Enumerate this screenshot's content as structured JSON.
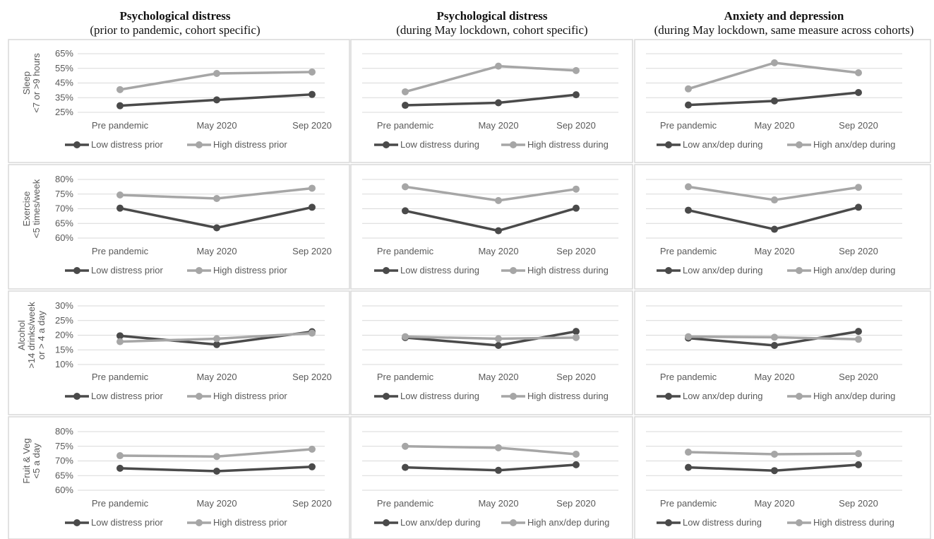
{
  "colors": {
    "low": "#4a4a4a",
    "high": "#a6a6a6",
    "grid": "#d9d9d9",
    "border": "#d9d9d9",
    "text": "#595959"
  },
  "columns": [
    {
      "title": "Psychological distress",
      "subtitle": "(prior to pandemic, cohort specific)"
    },
    {
      "title": "Psychological distress",
      "subtitle": "(during May lockdown, cohort specific)"
    },
    {
      "title": "Anxiety and depression",
      "subtitle": "(during May lockdown, same measure across cohorts)"
    }
  ],
  "rows": [
    {
      "ylabel": [
        "Sleep",
        "<7 or >9 hours"
      ],
      "ticks": [
        "65%",
        "55%",
        "45%",
        "35%",
        "25%"
      ],
      "ylim": [
        25,
        65
      ],
      "step": 10,
      "show_ticks": [
        true,
        false,
        false
      ]
    },
    {
      "ylabel": [
        "Exercise",
        "<5 times/week"
      ],
      "ticks": [
        "80%",
        "75%",
        "70%",
        "65%",
        "60%"
      ],
      "ylim": [
        60,
        80
      ],
      "step": 5,
      "show_ticks": [
        true,
        false,
        false
      ]
    },
    {
      "ylabel": [
        "Alcohol",
        ">14 drinks/week",
        "or > 4 a day"
      ],
      "ticks": [
        "30%",
        "25%",
        "20%",
        "15%",
        "10%"
      ],
      "ylim": [
        10,
        30
      ],
      "step": 5,
      "show_ticks": [
        true,
        false,
        false
      ]
    },
    {
      "ylabel": [
        "Fruit & Veg",
        "<5 a day"
      ],
      "ticks": [
        "80%",
        "75%",
        "70%",
        "65%",
        "60%"
      ],
      "ylim": [
        60,
        80
      ],
      "step": 5,
      "show_ticks": [
        true,
        false,
        false
      ]
    }
  ],
  "chart_data": [
    {
      "type": "line",
      "row": 0,
      "col": 0,
      "categories": [
        "Pre pandemic",
        "May 2020",
        "Sep 2020"
      ],
      "ylim": [
        25,
        65
      ],
      "series": [
        {
          "name": "Low distress prior",
          "values": [
            29.5,
            33.5,
            37.2
          ]
        },
        {
          "name": "High distress prior",
          "values": [
            40.5,
            51.5,
            52.5
          ]
        }
      ]
    },
    {
      "type": "line",
      "row": 0,
      "col": 1,
      "categories": [
        "Pre pandemic",
        "May 2020",
        "Sep 2020"
      ],
      "ylim": [
        25,
        65
      ],
      "series": [
        {
          "name": "Low distress during",
          "values": [
            29.8,
            31.5,
            37.0
          ]
        },
        {
          "name": "High distress during",
          "values": [
            39.0,
            56.5,
            53.5
          ]
        }
      ]
    },
    {
      "type": "line",
      "row": 0,
      "col": 2,
      "categories": [
        "Pre pandemic",
        "May 2020",
        "Sep 2020"
      ],
      "ylim": [
        25,
        65
      ],
      "series": [
        {
          "name": "Low anx/dep during",
          "values": [
            30.0,
            32.8,
            38.5
          ]
        },
        {
          "name": "High anx/dep during",
          "values": [
            41.0,
            58.8,
            52.0
          ]
        }
      ]
    },
    {
      "type": "line",
      "row": 1,
      "col": 0,
      "categories": [
        "Pre pandemic",
        "May 2020",
        "Sep 2020"
      ],
      "ylim": [
        60,
        80
      ],
      "series": [
        {
          "name": "Low distress prior",
          "values": [
            70.2,
            63.5,
            70.5
          ]
        },
        {
          "name": "High distress prior",
          "values": [
            74.7,
            73.5,
            77.0
          ]
        }
      ]
    },
    {
      "type": "line",
      "row": 1,
      "col": 1,
      "categories": [
        "Pre pandemic",
        "May 2020",
        "Sep 2020"
      ],
      "ylim": [
        60,
        80
      ],
      "series": [
        {
          "name": "Low distress during",
          "values": [
            69.3,
            62.5,
            70.2
          ]
        },
        {
          "name": "High distress during",
          "values": [
            77.5,
            72.8,
            76.7
          ]
        }
      ]
    },
    {
      "type": "line",
      "row": 1,
      "col": 2,
      "categories": [
        "Pre pandemic",
        "May 2020",
        "Sep 2020"
      ],
      "ylim": [
        60,
        80
      ],
      "series": [
        {
          "name": "Low anx/dep during",
          "values": [
            69.5,
            63.0,
            70.5
          ]
        },
        {
          "name": "High anx/dep during",
          "values": [
            77.5,
            73.0,
            77.3
          ]
        }
      ]
    },
    {
      "type": "line",
      "row": 2,
      "col": 0,
      "categories": [
        "Pre pandemic",
        "May 2020",
        "Sep 2020"
      ],
      "ylim": [
        10,
        30
      ],
      "series": [
        {
          "name": "Low distress prior",
          "values": [
            19.8,
            16.8,
            21.2
          ]
        },
        {
          "name": "High distress prior",
          "values": [
            17.8,
            18.8,
            20.7
          ]
        }
      ]
    },
    {
      "type": "line",
      "row": 2,
      "col": 1,
      "categories": [
        "Pre pandemic",
        "May 2020",
        "Sep 2020"
      ],
      "ylim": [
        10,
        30
      ],
      "series": [
        {
          "name": "Low distress during",
          "values": [
            19.2,
            16.5,
            21.3
          ]
        },
        {
          "name": "High distress during",
          "values": [
            19.5,
            18.8,
            19.2
          ]
        }
      ]
    },
    {
      "type": "line",
      "row": 2,
      "col": 2,
      "categories": [
        "Pre pandemic",
        "May 2020",
        "Sep 2020"
      ],
      "ylim": [
        10,
        30
      ],
      "series": [
        {
          "name": "Low anx/dep during",
          "values": [
            19.0,
            16.5,
            21.3
          ]
        },
        {
          "name": "High anx/dep during",
          "values": [
            19.5,
            19.3,
            18.6
          ]
        }
      ]
    },
    {
      "type": "line",
      "row": 3,
      "col": 0,
      "categories": [
        "Pre pandemic",
        "May 2020",
        "Sep 2020"
      ],
      "ylim": [
        60,
        80
      ],
      "series": [
        {
          "name": "Low distress prior",
          "values": [
            67.5,
            66.5,
            68.0
          ]
        },
        {
          "name": "High distress prior",
          "values": [
            71.8,
            71.5,
            74.0
          ]
        }
      ]
    },
    {
      "type": "line",
      "row": 3,
      "col": 1,
      "categories": [
        "Pre pandemic",
        "May 2020",
        "Sep 2020"
      ],
      "ylim": [
        60,
        80
      ],
      "series": [
        {
          "name": "Low anx/dep during",
          "values": [
            67.8,
            66.8,
            68.7
          ]
        },
        {
          "name": "High anx/dep during",
          "values": [
            75.0,
            74.5,
            72.3
          ]
        }
      ]
    },
    {
      "type": "line",
      "row": 3,
      "col": 2,
      "categories": [
        "Pre pandemic",
        "May 2020",
        "Sep 2020"
      ],
      "ylim": [
        60,
        80
      ],
      "series": [
        {
          "name": "Low distress during",
          "values": [
            67.8,
            66.7,
            68.7
          ]
        },
        {
          "name": "High distress during",
          "values": [
            73.0,
            72.3,
            72.5
          ]
        }
      ]
    }
  ]
}
